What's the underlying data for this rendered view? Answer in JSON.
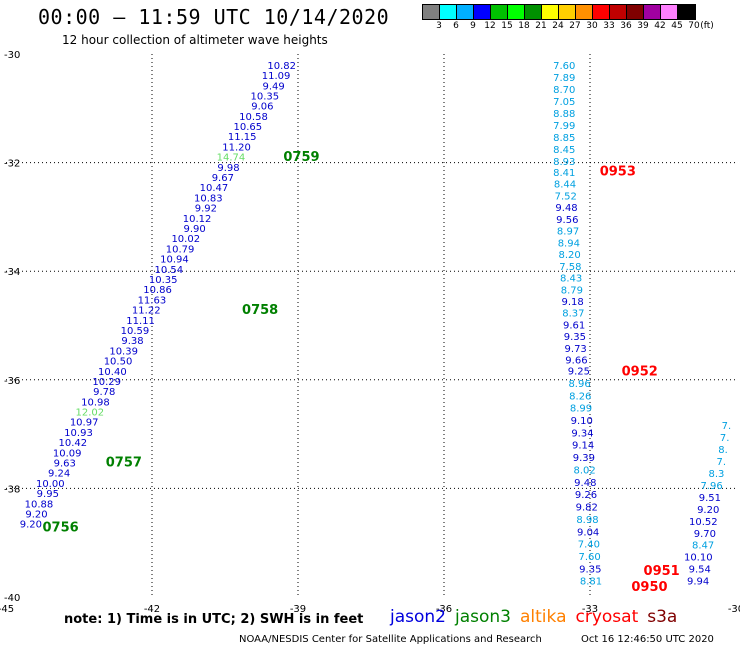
{
  "title": "00:00 – 11:59 UTC 10/14/2020",
  "subtitle": "12 hour collection of altimeter wave heights",
  "colorbar": {
    "colors": [
      "#808080",
      "#00ffff",
      "#00b0ff",
      "#0000ff",
      "#00c000",
      "#00ff00",
      "#009000",
      "#ffff00",
      "#ffd000",
      "#ff9000",
      "#ff0000",
      "#c00000",
      "#800000",
      "#a000a0",
      "#ff80ff",
      "#000000"
    ],
    "ticks": [
      "3",
      "6",
      "9",
      "12",
      "15",
      "18",
      "21",
      "24",
      "27",
      "30",
      "33",
      "36",
      "39",
      "42",
      "45",
      "70",
      "(ft)"
    ]
  },
  "note": "note: 1) Time is in UTC; 2) SWH is in feet",
  "satellites": [
    {
      "name": "jason2",
      "color": "#0000dd"
    },
    {
      "name": "jason3",
      "color": "#008000"
    },
    {
      "name": "altika",
      "color": "#ff8000"
    },
    {
      "name": "cryosat",
      "color": "#ff0000"
    },
    {
      "name": "s3a",
      "color": "#800000"
    }
  ],
  "footer_center": "NOAA/NESDIS Center for Satellite Applications and Research",
  "footer_stamp": "Oct 16 12:46:50 UTC 2020",
  "chart_data": {
    "type": "scatter",
    "title": "00:00 – 11:59 UTC 10/14/2020",
    "subtitle": "12 hour collection of altimeter wave heights",
    "xlim": [
      -45,
      -30
    ],
    "ylim": [
      -40,
      -30
    ],
    "xticks": [
      -45,
      -42,
      -39,
      -36,
      -33,
      -30
    ],
    "yticks": [
      -30,
      -32,
      -34,
      -36,
      -38,
      -40
    ],
    "x_tick_labels": [
      "-45",
      "-42",
      "-39",
      "-36",
      "-33",
      "-30"
    ],
    "y_tick_labels": [
      "-30",
      "-32",
      "-34",
      "-36",
      "-38",
      "-40"
    ],
    "grid": true,
    "color_scale": {
      "bounds": [
        3,
        6,
        9,
        12,
        15
      ],
      "colors": [
        "#808080",
        "#00c8ff",
        "#00a0e0",
        "#0000cc",
        "#008000",
        "#66dd66"
      ]
    },
    "colors": {
      "jason2": "#0000cc",
      "jason3": "#008000",
      "altika": "#ff8000",
      "cryosat": "#ff0000",
      "s3a": "#800000",
      "swh_light_blue": "#00a0e0",
      "swh_green": "#66dd66"
    },
    "time_labels": [
      {
        "text": "0759",
        "lon": -39.3,
        "lat": -31.88,
        "color": "#008000"
      },
      {
        "text": "0758",
        "lon": -40.15,
        "lat": -34.7,
        "color": "#008000"
      },
      {
        "text": "0757",
        "lon": -42.95,
        "lat": -37.5,
        "color": "#008000"
      },
      {
        "text": "0756",
        "lon": -44.25,
        "lat": -38.7,
        "color": "#008000"
      },
      {
        "text": "0953",
        "lon": -32.8,
        "lat": -32.15,
        "color": "#ff0000"
      },
      {
        "text": "0952",
        "lon": -32.35,
        "lat": -35.83,
        "color": "#ff0000"
      },
      {
        "text": "0951",
        "lon": -31.9,
        "lat": -39.5,
        "color": "#ff0000"
      },
      {
        "text": "0950",
        "lon": -32.15,
        "lat": -39.8,
        "color": "#ff0000"
      }
    ],
    "tracks": [
      {
        "satellite": "jason3",
        "lon_start": -39.04,
        "lon_end": -44.26,
        "lat_start": -30.2,
        "lat_end": -38.65,
        "swh": [
          "10.82",
          "11.09",
          "9.49",
          "10.35",
          "9.06",
          "10.58",
          "10.65",
          "11.15",
          "11.20",
          "14.74",
          "9.98",
          "9.67",
          "10.47",
          "10.83",
          "9.92",
          "10.12",
          "9.90",
          "10.02",
          "10.79",
          "10.94",
          "10.54",
          "10.35",
          "10.86",
          "11.63",
          "11.22",
          "11.11",
          "10.59",
          "9.38",
          "10.39",
          "10.50",
          "10.40",
          "10.29",
          "9.78",
          "10.98",
          "12.02",
          "10.97",
          "10.93",
          "10.42",
          "10.09",
          "9.63",
          "9.24",
          "10.00",
          "9.95",
          "10.88",
          "9.20",
          "9.20"
        ]
      },
      {
        "satellite": "cryosat",
        "lon_start": -33.3,
        "lon_end": -33.3,
        "lat_start": -30.2,
        "lat_end": -31.97,
        "swh": [
          "7.60",
          "7.89",
          "8.70",
          "7.05",
          "8.88",
          "7.99",
          "8.85",
          "8.45",
          "8.93"
        ]
      },
      {
        "satellite": "cryosat",
        "lon_start": -33.3,
        "lon_end": -33.05,
        "lat_start": -32.17,
        "lat_end": -35.63,
        "swh": [
          "8.41",
          "8.44",
          "7.52",
          "9.48",
          "9.56",
          "8.97",
          "8.94",
          "8.20",
          "7.58",
          "8.43",
          "8.79",
          "9.18",
          "8.37",
          "9.61",
          "9.35",
          "9.73",
          "9.66"
        ]
      },
      {
        "satellite": "cryosat",
        "lon_start": -33.0,
        "lon_end": -32.75,
        "lat_start": -35.83,
        "lat_end": -39.7,
        "swh": [
          "9.25",
          "8.96",
          "8.26",
          "8.99",
          "9.10",
          "9.34",
          "9.14",
          "9.39",
          "8.02",
          "9.48",
          "9.26",
          "9.82",
          "8.98",
          "9.04",
          "7.40",
          "7.60",
          "9.35",
          "8.81"
        ]
      },
      {
        "satellite": "s3a",
        "lon_start": -30.1,
        "lon_end": -30.55,
        "lat_start": -36.83,
        "lat_end": -39.7,
        "swh": [
          "7.",
          "7.",
          "8.",
          "7.",
          "8.3",
          "7.96",
          "9.51",
          "9.20",
          "10.52",
          "9.70",
          "8.47",
          "10.10",
          "9.54",
          "9.94"
        ]
      }
    ]
  }
}
